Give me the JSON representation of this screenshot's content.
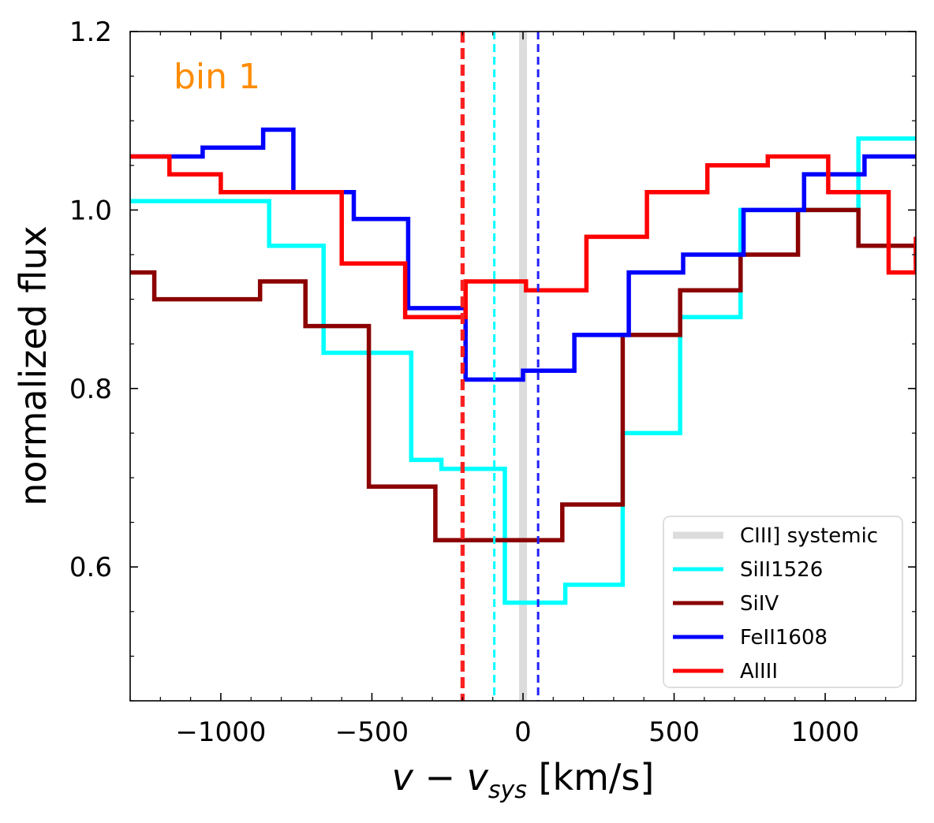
{
  "chart_data": {
    "type": "line",
    "step": true,
    "annotation": "bin 1",
    "xlabel_parts": [
      "v − v",
      "sys",
      " [km/s]"
    ],
    "ylabel": "normalized flux",
    "xlim": [
      -1300,
      1300
    ],
    "ylim": [
      0.45,
      1.2
    ],
    "x_ticks": [
      -1000,
      -500,
      0,
      500,
      1000
    ],
    "x_tick_labels": [
      "−1000",
      "−500",
      "0",
      "500",
      "1000"
    ],
    "y_ticks": [
      0.6,
      0.8,
      1.0,
      1.2
    ],
    "y_tick_labels": [
      "0.6",
      "0.8",
      "1.0",
      "1.2"
    ],
    "grid": false,
    "legend_position": "lower-right",
    "systemic": {
      "name": "CIII] systemic",
      "x": 0,
      "color": "#dcdcdc"
    },
    "velocity_markers": [
      {
        "x": -200,
        "color": "#8b0000",
        "style": "dashed"
      },
      {
        "x": -200,
        "color": "#ff2020",
        "style": "dashed"
      },
      {
        "x": -95,
        "color": "#00ffff",
        "style": "dashed"
      },
      {
        "x": 50,
        "color": "#2020ff",
        "style": "dashed"
      }
    ],
    "series": [
      {
        "name": "SiII1526",
        "color": "#00ffff",
        "x": [
          -1300,
          -1040,
          -840,
          -660,
          -460,
          -370,
          -270,
          -60,
          140,
          330,
          520,
          720,
          910,
          1110,
          1300
        ],
        "y": [
          1.01,
          1.01,
          0.96,
          0.84,
          0.84,
          0.72,
          0.71,
          0.56,
          0.58,
          0.75,
          0.88,
          1.0,
          1.0,
          1.08,
          1.08
        ]
      },
      {
        "name": "SiIV",
        "color": "#8b0000",
        "x": [
          -1300,
          -1220,
          -1030,
          -870,
          -720,
          -510,
          -290,
          -80,
          130,
          330,
          520,
          720,
          910,
          1110,
          1300
        ],
        "y": [
          0.93,
          0.9,
          0.9,
          0.92,
          0.87,
          0.69,
          0.63,
          0.63,
          0.67,
          0.86,
          0.91,
          0.95,
          1.0,
          0.96,
          0.94
        ]
      },
      {
        "name": "FeII1608",
        "color": "#0000ff",
        "x": [
          -1300,
          -1220,
          -1060,
          -860,
          -760,
          -560,
          -380,
          -190,
          0,
          170,
          350,
          530,
          730,
          930,
          1130,
          1300
        ],
        "y": [
          1.06,
          1.06,
          1.07,
          1.09,
          1.02,
          0.99,
          0.89,
          0.81,
          0.82,
          0.86,
          0.93,
          0.95,
          1.0,
          1.04,
          1.06,
          1.06
        ]
      },
      {
        "name": "AlIII",
        "color": "#ff0000",
        "x": [
          -1300,
          -1170,
          -1000,
          -800,
          -600,
          -390,
          -190,
          10,
          210,
          410,
          610,
          810,
          1010,
          1210,
          1300
        ],
        "y": [
          1.06,
          1.04,
          1.02,
          1.02,
          0.94,
          0.88,
          0.92,
          0.91,
          0.97,
          1.02,
          1.05,
          1.06,
          1.02,
          0.93,
          0.97
        ]
      }
    ]
  }
}
